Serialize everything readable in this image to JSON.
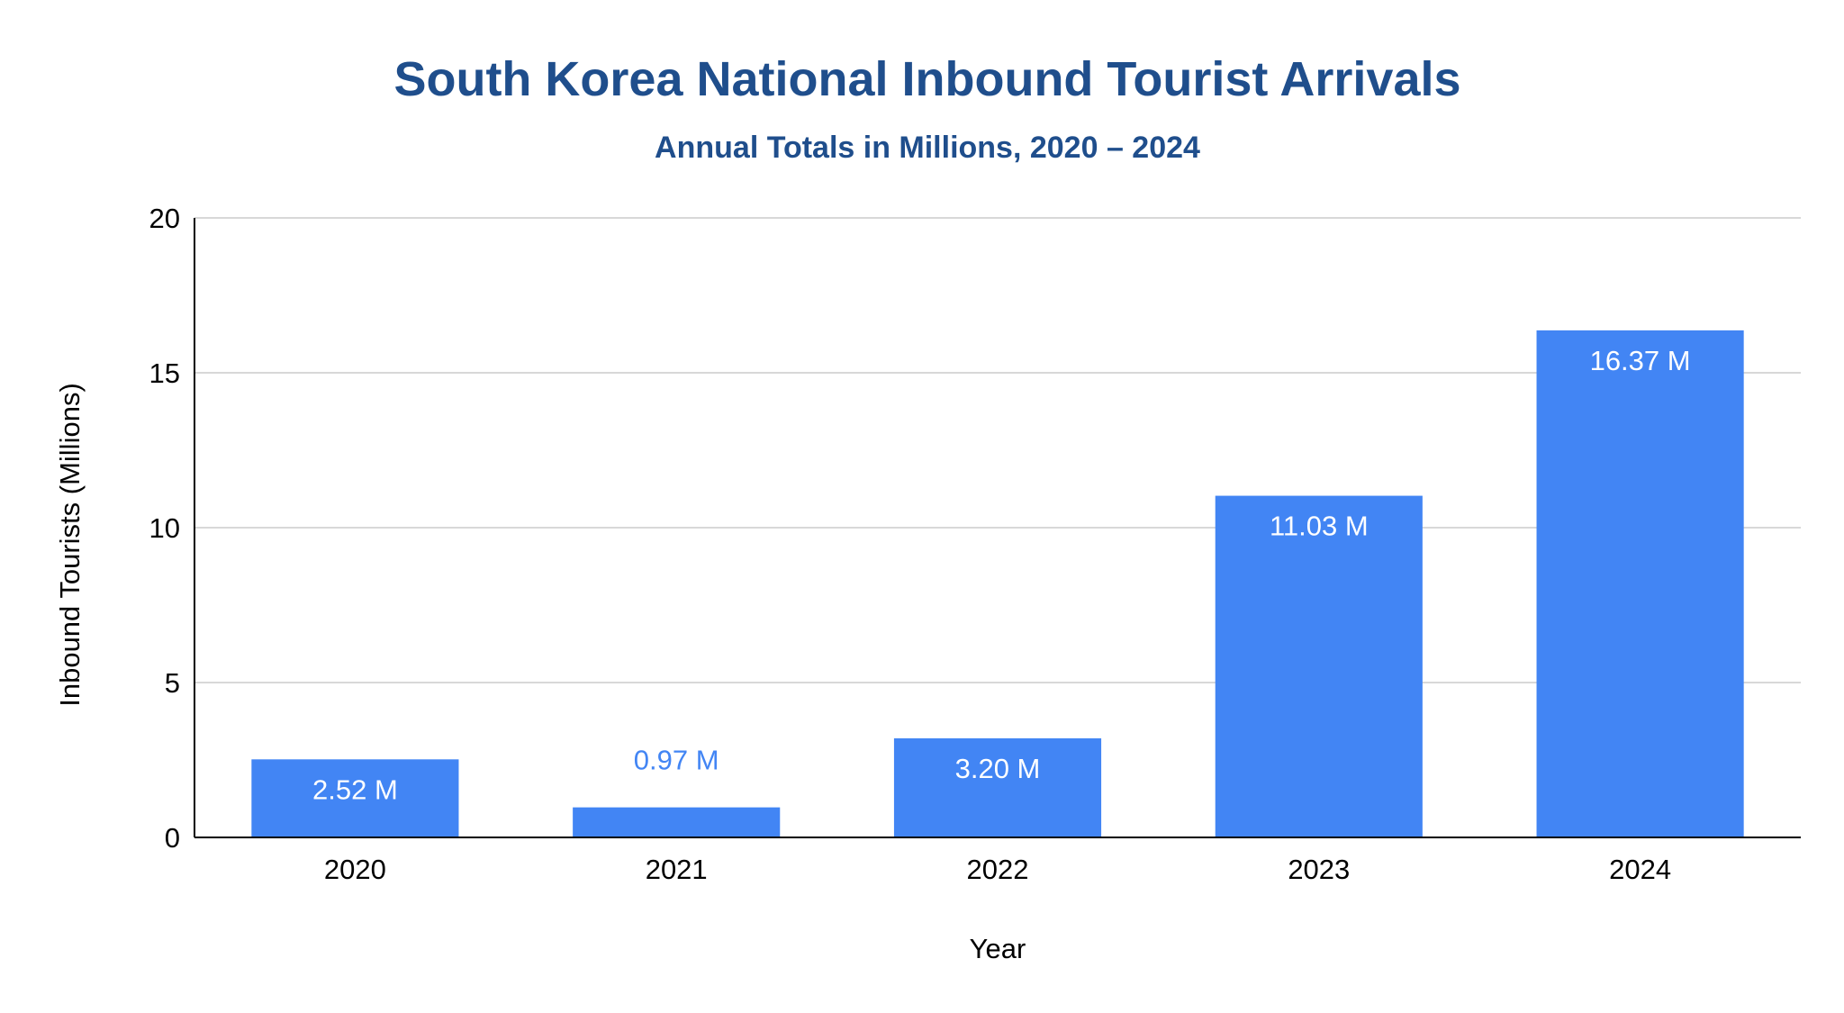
{
  "colors": {
    "title": "#1f4e8c",
    "bar": "#4285f4",
    "label_inside": "#ffffff",
    "label_outside": "#4285f4",
    "grid": "#cccccc",
    "axis": "#000000"
  },
  "chart_data": {
    "type": "bar",
    "title": "South Korea National Inbound Tourist Arrivals",
    "subtitle": "Annual Totals in Millions, 2020 – 2024",
    "xlabel": "Year",
    "ylabel": "Inbound Tourists (Millions)",
    "categories": [
      "2020",
      "2021",
      "2022",
      "2023",
      "2024"
    ],
    "values": [
      2.52,
      0.97,
      3.2,
      11.03,
      16.37
    ],
    "data_labels": [
      "2.52 M",
      "0.97 M",
      "3.20 M",
      "11.03 M",
      "16.37 M"
    ],
    "ylim": [
      0,
      20
    ],
    "yticks": [
      0,
      5,
      10,
      15,
      20
    ],
    "grid": true,
    "legend": "none"
  }
}
